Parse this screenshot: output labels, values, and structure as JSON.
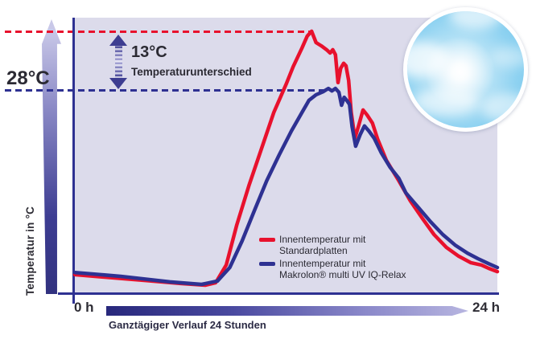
{
  "labels": {
    "left_temp": "28°C",
    "diff_value": "13°C",
    "diff_caption": "Temperaturunterschied",
    "y_axis": "Temperatur in °C",
    "x_start": "0 h",
    "x_end": "24 h",
    "x_caption": "Ganztägiger Verlauf 24 Stunden"
  },
  "legend": {
    "items": [
      {
        "color": "#e8112d",
        "line1": "Innentemperatur mit",
        "line2": "Standardplatten"
      },
      {
        "color": "#2e3192",
        "line1": "Innentemperatur mit",
        "line2": "Makrolon® multi UV IQ-Relax"
      }
    ]
  },
  "colors": {
    "red": "#e8112d",
    "blue": "#2e3192",
    "plot_bg": "#dcdbeb",
    "axis": "#2e3192",
    "text_dark": "#2b2a33"
  },
  "icons": {
    "sun_sky": "sun-in-blue-sky-circle-photo"
  },
  "chart_data": {
    "type": "line",
    "title": "",
    "xlabel": "Ganztägiger Verlauf 24 Stunden",
    "ylabel": "Temperatur in °C",
    "x_axis": {
      "start_label": "0 h",
      "end_label": "24 h",
      "range_hours": [
        0,
        24
      ]
    },
    "y_axis": {
      "scale": "unlabeled-schematic",
      "unit": "°C",
      "labeled_value_c": 28
    },
    "grid": false,
    "legend_position": "inside-lower-right",
    "annotations": {
      "blue_reference_label": "28°C",
      "difference_label": "13°C Temperaturunterschied"
    },
    "y_encoding": "fraction_of_plot_height_0bottom_1top",
    "reference_lines": [
      {
        "name": "red-peak-dashed-line",
        "color": "#e8112d",
        "frac": 0.948,
        "x_end_hours": 13.5,
        "value_c": 41
      },
      {
        "name": "blue-peak-dashed-line",
        "color": "#2e3192",
        "frac": 0.738,
        "x_end_hours": 14.3,
        "value_c": 28
      }
    ],
    "series": [
      {
        "name": "Innentemperatur mit Standardplatten",
        "color": "#e8112d",
        "peak_value_c": 41,
        "points": [
          [
            0,
            0.07
          ],
          [
            1.7,
            0.061
          ],
          [
            4.0,
            0.049
          ],
          [
            6.0,
            0.038
          ],
          [
            7.4,
            0.032
          ],
          [
            8.0,
            0.041
          ],
          [
            8.6,
            0.105
          ],
          [
            9.2,
            0.25
          ],
          [
            9.9,
            0.395
          ],
          [
            10.6,
            0.526
          ],
          [
            11.3,
            0.657
          ],
          [
            12.0,
            0.759
          ],
          [
            12.4,
            0.823
          ],
          [
            12.9,
            0.89
          ],
          [
            13.2,
            0.933
          ],
          [
            13.45,
            0.951
          ],
          [
            13.7,
            0.91
          ],
          [
            14.0,
            0.898
          ],
          [
            14.3,
            0.884
          ],
          [
            14.5,
            0.872
          ],
          [
            14.65,
            0.884
          ],
          [
            14.8,
            0.866
          ],
          [
            14.95,
            0.765
          ],
          [
            15.1,
            0.817
          ],
          [
            15.27,
            0.835
          ],
          [
            15.4,
            0.826
          ],
          [
            15.55,
            0.773
          ],
          [
            15.7,
            0.657
          ],
          [
            15.91,
            0.564
          ],
          [
            16.1,
            0.605
          ],
          [
            16.37,
            0.666
          ],
          [
            16.6,
            0.648
          ],
          [
            16.9,
            0.619
          ],
          [
            17.2,
            0.56
          ],
          [
            17.7,
            0.483
          ],
          [
            18.4,
            0.41
          ],
          [
            19.06,
            0.337
          ],
          [
            19.75,
            0.273
          ],
          [
            20.4,
            0.215
          ],
          [
            21.1,
            0.169
          ],
          [
            21.8,
            0.137
          ],
          [
            22.5,
            0.113
          ],
          [
            23.1,
            0.105
          ],
          [
            23.5,
            0.093
          ],
          [
            24,
            0.081
          ]
        ]
      },
      {
        "name": "Innentemperatur mit Makrolon® multi UV IQ-Relax",
        "color": "#2e3192",
        "peak_value_c": 28,
        "points": [
          [
            0,
            0.078
          ],
          [
            2.6,
            0.064
          ],
          [
            5.4,
            0.044
          ],
          [
            7.2,
            0.035
          ],
          [
            8.1,
            0.047
          ],
          [
            8.8,
            0.096
          ],
          [
            9.5,
            0.192
          ],
          [
            10.2,
            0.302
          ],
          [
            10.9,
            0.41
          ],
          [
            11.6,
            0.503
          ],
          [
            12.3,
            0.59
          ],
          [
            12.9,
            0.657
          ],
          [
            13.3,
            0.701
          ],
          [
            13.7,
            0.721
          ],
          [
            14.1,
            0.732
          ],
          [
            14.4,
            0.744
          ],
          [
            14.6,
            0.735
          ],
          [
            14.8,
            0.744
          ],
          [
            15.0,
            0.73
          ],
          [
            15.15,
            0.683
          ],
          [
            15.3,
            0.712
          ],
          [
            15.45,
            0.7
          ],
          [
            15.6,
            0.686
          ],
          [
            15.75,
            0.605
          ],
          [
            15.95,
            0.535
          ],
          [
            16.2,
            0.576
          ],
          [
            16.45,
            0.608
          ],
          [
            16.7,
            0.59
          ],
          [
            17.0,
            0.564
          ],
          [
            17.4,
            0.512
          ],
          [
            17.9,
            0.459
          ],
          [
            18.4,
            0.419
          ],
          [
            18.8,
            0.366
          ],
          [
            19.5,
            0.314
          ],
          [
            20.2,
            0.262
          ],
          [
            20.9,
            0.215
          ],
          [
            21.6,
            0.177
          ],
          [
            22.3,
            0.148
          ],
          [
            22.9,
            0.128
          ],
          [
            23.5,
            0.11
          ],
          [
            24,
            0.096
          ]
        ]
      }
    ]
  }
}
